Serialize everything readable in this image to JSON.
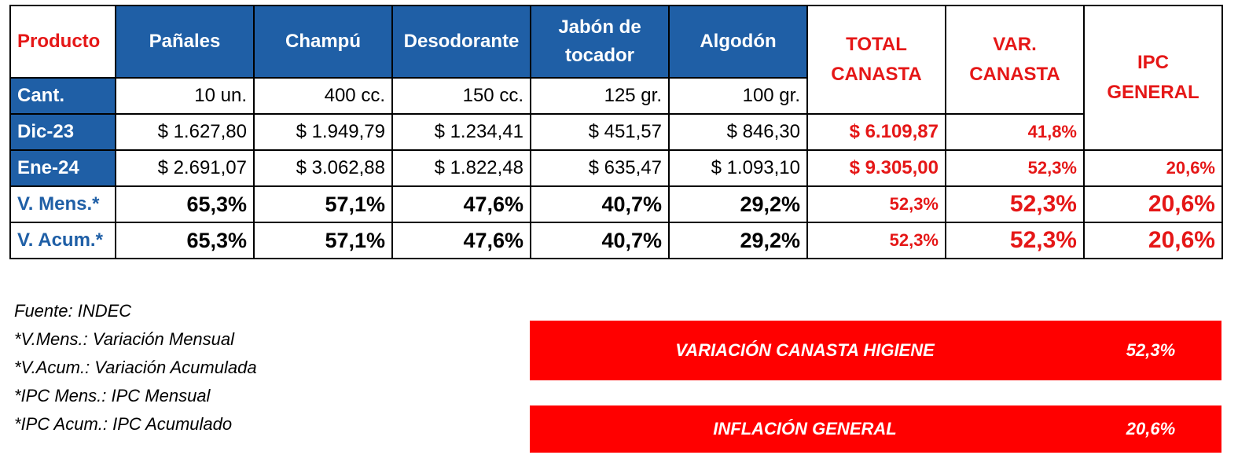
{
  "table": {
    "headers": {
      "producto": "Producto",
      "panales": "Pañales",
      "champu": "Champú",
      "desodorante": "Desodorante",
      "jabon": "Jabón de tocador",
      "algodon": "Algodón",
      "total": "TOTAL CANASTA",
      "var": "VAR. CANASTA",
      "ipc": "IPC GENERAL"
    },
    "cant": {
      "label": "Cant.",
      "values": [
        "10 un.",
        "400 cc.",
        "150 cc.",
        "125 gr.",
        "100 gr."
      ]
    },
    "dic23": {
      "label": "Dic-23",
      "values": [
        "$ 1.627,80",
        "$ 1.949,79",
        "$ 1.234,41",
        "$ 451,57",
        "$ 846,30"
      ],
      "total": "$ 6.109,87",
      "var": "41,8%"
    },
    "ene24": {
      "label": "Ene-24",
      "values": [
        "$ 2.691,07",
        "$ 3.062,88",
        "$ 1.822,48",
        "$ 635,47",
        "$ 1.093,10"
      ],
      "total": "$ 9.305,00",
      "var": "52,3%",
      "ipc": "20,6%"
    },
    "vmens": {
      "label": "V. Mens.*",
      "values": [
        "65,3%",
        "57,1%",
        "47,6%",
        "40,7%",
        "29,2%"
      ],
      "total": "52,3%",
      "var": "52,3%",
      "ipc": "20,6%"
    },
    "vacum": {
      "label": "V. Acum.*",
      "values": [
        "65,3%",
        "57,1%",
        "47,6%",
        "40,7%",
        "29,2%"
      ],
      "total": "52,3%",
      "var": "52,3%",
      "ipc": "20,6%"
    }
  },
  "notes": [
    "Fuente: INDEC",
    "*V.Mens.: Variación Mensual",
    "*V.Acum.: Variación Acumulada",
    "*IPC Mens.: IPC Mensual",
    "*IPC Acum.: IPC Acumulado"
  ],
  "banners": [
    {
      "label": "VARIACIÓN CANASTA HIGIENE",
      "value": "52,3%"
    },
    {
      "label": "INFLACIÓN GENERAL",
      "value": "20,6%"
    }
  ],
  "colors": {
    "blue": "#1f5fa6",
    "red": "#e51717",
    "banner": "#ff0000"
  }
}
